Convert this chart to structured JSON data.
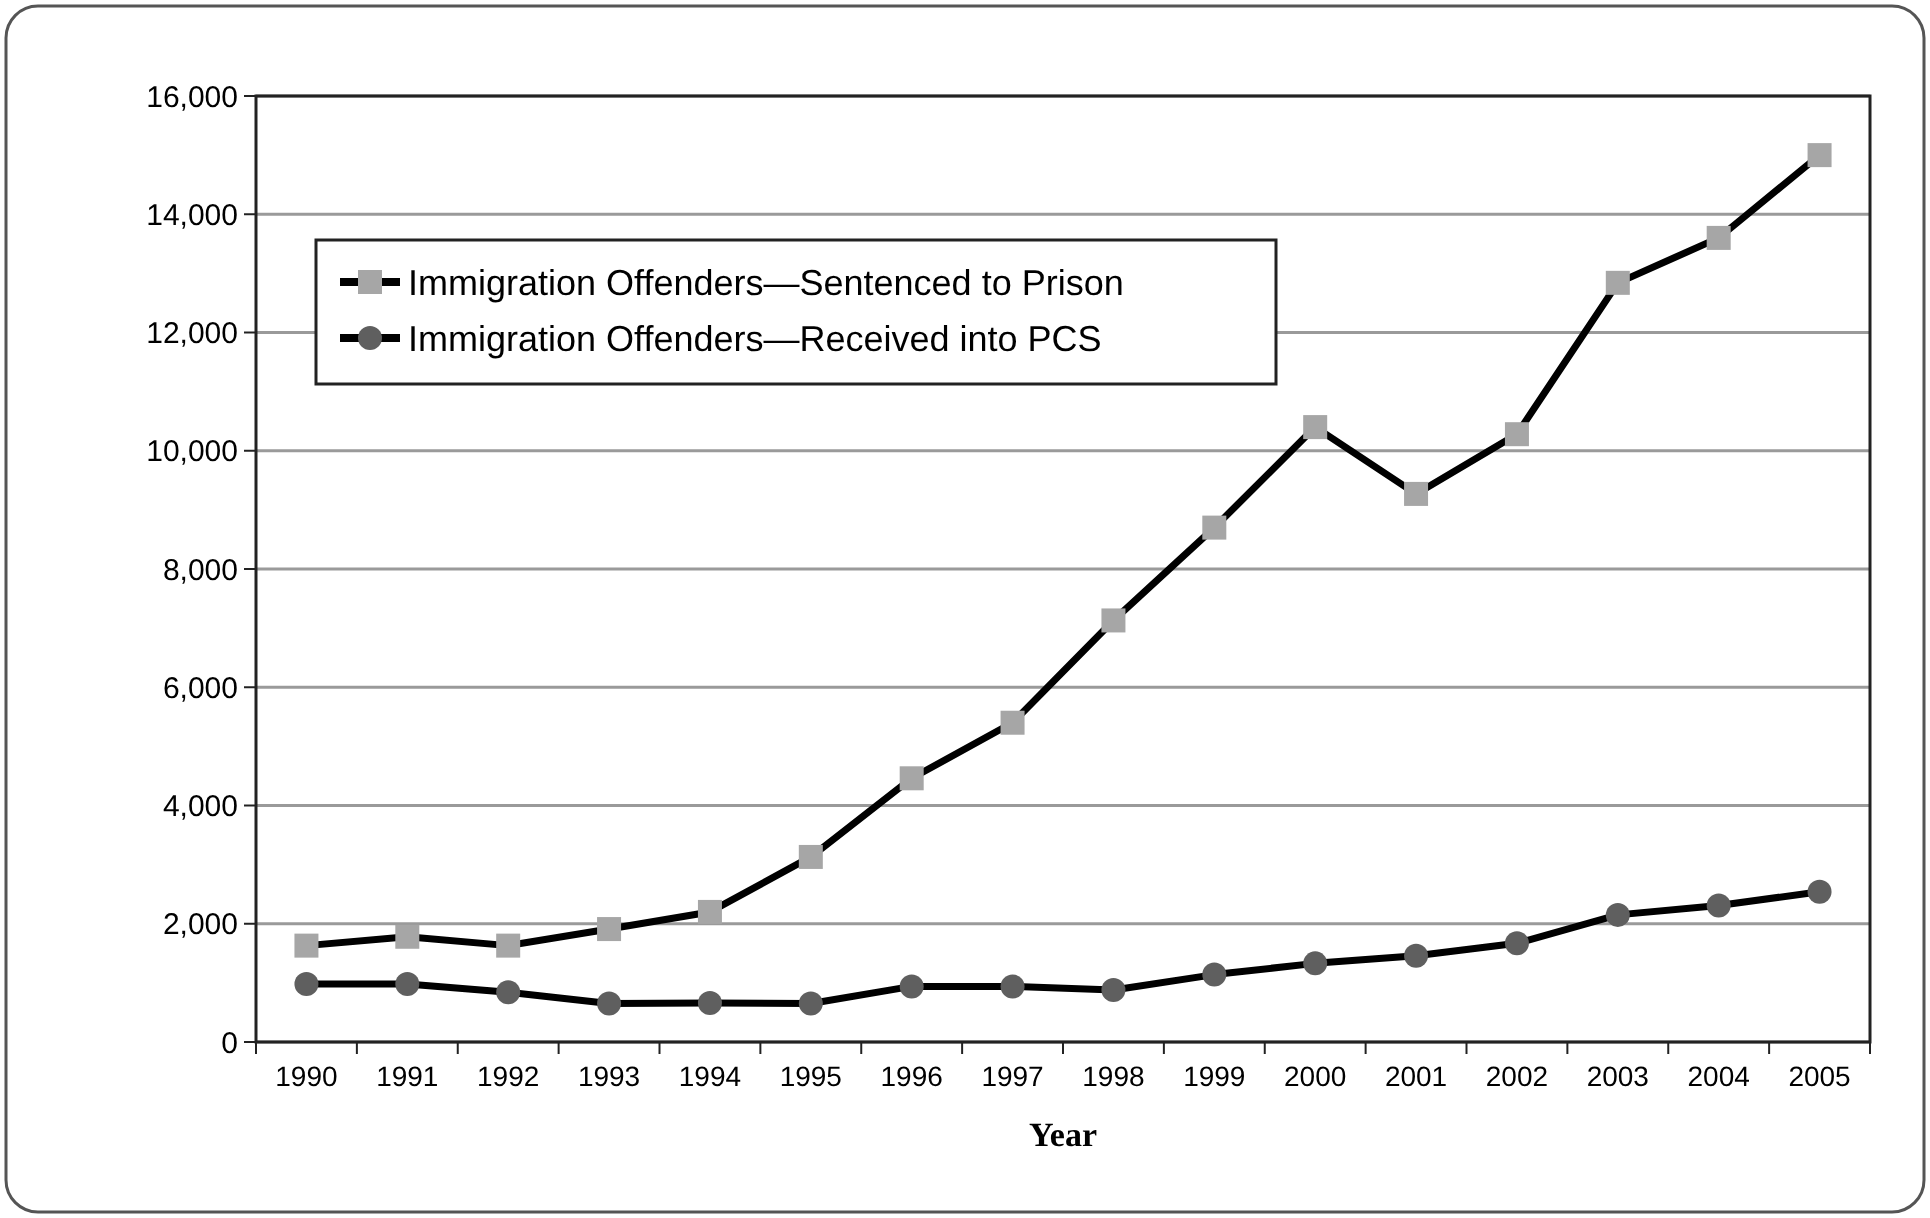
{
  "chart_data": {
    "type": "line",
    "xlabel": "Year",
    "categories": [
      "1990",
      "1991",
      "1992",
      "1993",
      "1994",
      "1995",
      "1996",
      "1997",
      "1998",
      "1999",
      "2000",
      "2001",
      "2002",
      "2003",
      "2004",
      "2005"
    ],
    "series": [
      {
        "name": "Immigration Offenders—Sentenced to Prison",
        "color": "#a6a6a6",
        "marker": "square",
        "values": [
          1630,
          1780,
          1630,
          1910,
          2200,
          3130,
          4460,
          5400,
          7130,
          8700,
          10400,
          9270,
          10280,
          12840,
          13600,
          15000
        ]
      },
      {
        "name": "Immigration Offenders—Received into PCS",
        "color": "#5f5f5f",
        "marker": "circle",
        "values": [
          980,
          980,
          840,
          650,
          660,
          650,
          940,
          940,
          880,
          1140,
          1330,
          1460,
          1670,
          2150,
          2310,
          2540
        ]
      }
    ],
    "ylim": [
      0,
      16000
    ],
    "yticks": [
      {
        "value": 0,
        "label": "0"
      },
      {
        "value": 2000,
        "label": "2,000"
      },
      {
        "value": 4000,
        "label": "4,000"
      },
      {
        "value": 6000,
        "label": "6,000"
      },
      {
        "value": 8000,
        "label": "8,000"
      },
      {
        "value": 10000,
        "label": "10,000"
      },
      {
        "value": 12000,
        "label": "12,000"
      },
      {
        "value": 14000,
        "label": "14,000"
      },
      {
        "value": 16000,
        "label": "16,000"
      }
    ],
    "grid": "y",
    "legend": "top left",
    "line_style": "solid"
  }
}
